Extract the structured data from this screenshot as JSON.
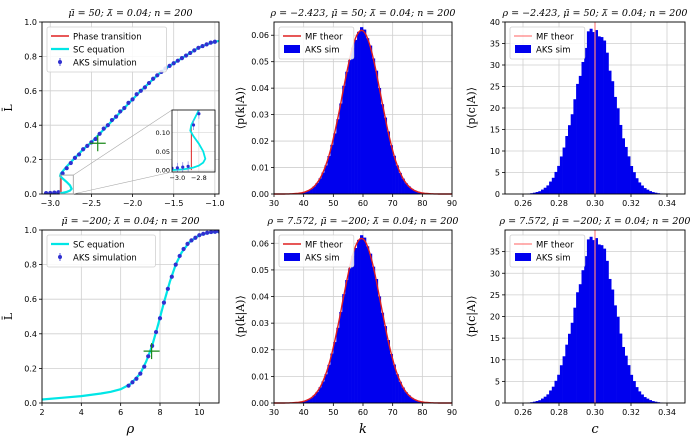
{
  "chart_data": [
    {
      "id": "p1",
      "type": "line",
      "title": "μ̃ = 50;  λ̃ = 0.04;  n = 200",
      "ylabel": "L̄",
      "xlabel": "",
      "xlim": [
        -3.1,
        -0.95
      ],
      "ylim": [
        0,
        1.0
      ],
      "xticks": [
        -3.0,
        -2.5,
        -2.0,
        -1.5,
        -1.0
      ],
      "xtick_labels": [
        "−3.0",
        "−2.5",
        "−2.0",
        "−1.5",
        "−1.0"
      ],
      "yticks": [
        0,
        0.2,
        0.4,
        0.6,
        0.8,
        1.0
      ],
      "ytick_labels": [
        "0.0",
        "0.2",
        "0.4",
        "0.6",
        "0.8",
        "1.0"
      ],
      "grid": true,
      "legend_position": "upper-left",
      "series": [
        {
          "name": "Phase transition",
          "kind": "vline",
          "color": "#e02020",
          "x": -2.87,
          "y_range": [
            0.0,
            0.12
          ]
        },
        {
          "name": "SC equation",
          "kind": "line",
          "color": "#00e6e6",
          "points": [
            [
              -3.05,
              0.0
            ],
            [
              -3.0,
              0.001
            ],
            [
              -2.95,
              0.002
            ],
            [
              -2.9,
              0.004
            ],
            [
              -2.85,
              0.007
            ],
            [
              -2.8,
              0.012
            ],
            [
              -2.76,
              0.02
            ],
            [
              -2.74,
              0.03
            ],
            [
              -2.76,
              0.05
            ],
            [
              -2.8,
              0.07
            ],
            [
              -2.85,
              0.09
            ],
            [
              -2.88,
              0.105
            ],
            [
              -2.87,
              0.12
            ],
            [
              -2.8,
              0.16
            ],
            [
              -2.7,
              0.21
            ],
            [
              -2.6,
              0.26
            ],
            [
              -2.5,
              0.3
            ],
            [
              -2.4,
              0.35
            ],
            [
              -2.3,
              0.4
            ],
            [
              -2.2,
              0.45
            ],
            [
              -2.1,
              0.5
            ],
            [
              -2.0,
              0.55
            ],
            [
              -1.9,
              0.6
            ],
            [
              -1.8,
              0.645
            ],
            [
              -1.7,
              0.69
            ],
            [
              -1.6,
              0.73
            ],
            [
              -1.5,
              0.76
            ],
            [
              -1.4,
              0.79
            ],
            [
              -1.3,
              0.82
            ],
            [
              -1.2,
              0.85
            ],
            [
              -1.1,
              0.87
            ],
            [
              -1.0,
              0.885
            ],
            [
              -0.95,
              0.89
            ]
          ]
        },
        {
          "name": "AKS simulation",
          "kind": "points",
          "color": "#3030d0",
          "points": [
            [
              -3.05,
              0.005
            ],
            [
              -3.0,
              0.006
            ],
            [
              -2.95,
              0.008
            ],
            [
              -2.9,
              0.01
            ],
            [
              -2.85,
              0.12
            ],
            [
              -2.8,
              0.15
            ],
            [
              -2.75,
              0.18
            ],
            [
              -2.7,
              0.21
            ],
            [
              -2.65,
              0.23
            ],
            [
              -2.6,
              0.26
            ],
            [
              -2.55,
              0.28
            ],
            [
              -2.5,
              0.3
            ],
            [
              -2.45,
              0.32
            ],
            [
              -2.4,
              0.35
            ],
            [
              -2.35,
              0.38
            ],
            [
              -2.3,
              0.4
            ],
            [
              -2.25,
              0.43
            ],
            [
              -2.2,
              0.45
            ],
            [
              -2.15,
              0.48
            ],
            [
              -2.1,
              0.5
            ],
            [
              -2.05,
              0.53
            ],
            [
              -2.0,
              0.55
            ],
            [
              -1.95,
              0.58
            ],
            [
              -1.9,
              0.6
            ],
            [
              -1.85,
              0.62
            ],
            [
              -1.8,
              0.645
            ],
            [
              -1.75,
              0.67
            ],
            [
              -1.7,
              0.69
            ],
            [
              -1.65,
              0.71
            ],
            [
              -1.6,
              0.73
            ],
            [
              -1.55,
              0.745
            ],
            [
              -1.5,
              0.76
            ],
            [
              -1.45,
              0.775
            ],
            [
              -1.4,
              0.79
            ],
            [
              -1.35,
              0.805
            ],
            [
              -1.3,
              0.82
            ],
            [
              -1.25,
              0.835
            ],
            [
              -1.2,
              0.85
            ],
            [
              -1.15,
              0.86
            ],
            [
              -1.1,
              0.87
            ],
            [
              -1.05,
              0.88
            ],
            [
              -1.0,
              0.885
            ]
          ]
        }
      ],
      "marker": {
        "x": -2.423,
        "y": 0.295,
        "color": "#1a8a1a"
      },
      "inset": {
        "xlim": [
          -3.05,
          -2.65
        ],
        "ylim": [
          -0.005,
          0.16
        ],
        "xticks": [
          -3.0,
          -2.8
        ],
        "xtick_labels": [
          "−3.0",
          "−2.8"
        ],
        "yticks": [
          0.0,
          0.05,
          0.1
        ],
        "ytick_labels": [
          "0.00",
          "0.05",
          "0.10"
        ],
        "zoom_box_x": [
          -2.88,
          -2.72
        ],
        "zoom_box_y": [
          -0.02,
          0.11
        ]
      }
    },
    {
      "id": "p2",
      "type": "bar",
      "title": "ρ = −2.423,  μ̃ = 50;  λ̃ = 0.04;  n = 200",
      "ylabel": "⟨p(k|A)⟩",
      "xlabel": "",
      "xlim": [
        30,
        90
      ],
      "ylim": [
        0,
        0.065
      ],
      "xticks": [
        30,
        40,
        50,
        60,
        70,
        80,
        90
      ],
      "yticks": [
        0,
        0.01,
        0.02,
        0.03,
        0.04,
        0.05,
        0.06
      ],
      "ytick_labels": [
        "0.00",
        "0.01",
        "0.02",
        "0.03",
        "0.04",
        "0.05",
        "0.06"
      ],
      "grid": true,
      "legend_position": "upper-left",
      "series": [
        {
          "name": "MF theor",
          "kind": "curve",
          "color": "#e02020",
          "mean": 59.5,
          "sd": 6.45
        },
        {
          "name": "AKS sim",
          "kind": "hist",
          "color": "#0000ee",
          "mean": 59.5,
          "sd": 6.45,
          "bin_start": 30,
          "bin_end": 90,
          "bin_width": 1
        }
      ]
    },
    {
      "id": "p3",
      "type": "bar",
      "title": "ρ = −2.423,  μ̃ = 50;  λ̃ = 0.04;  n = 200",
      "ylabel": "⟨p(c|A)⟩",
      "xlabel": "",
      "xlim": [
        0.25,
        0.35
      ],
      "ylim": [
        0,
        40
      ],
      "xticks": [
        0.26,
        0.28,
        0.3,
        0.32,
        0.34
      ],
      "xtick_labels": [
        "0.26",
        "0.28",
        "0.30",
        "0.32",
        "0.34"
      ],
      "yticks": [
        0,
        5,
        10,
        15,
        20,
        25,
        30,
        35,
        40
      ],
      "grid": true,
      "legend_position": "upper-left",
      "series": [
        {
          "name": "MF theor",
          "kind": "vline",
          "color": "#ff8080",
          "x": 0.3
        },
        {
          "name": "AKS sim",
          "kind": "hist",
          "color": "#0000ee",
          "mean": 0.3,
          "sd": 0.0108,
          "bin_start": 0.255,
          "bin_end": 0.345,
          "bin_width": 0.0015,
          "peak": 38.5
        }
      ]
    },
    {
      "id": "p4",
      "type": "line",
      "title": "μ̃ = −200;  λ̃ = 0.04;  n = 200",
      "ylabel": "L̄",
      "xlabel": "ρ",
      "xlim": [
        2,
        11
      ],
      "ylim": [
        0,
        1.0
      ],
      "xticks": [
        2,
        4,
        6,
        8,
        10
      ],
      "yticks": [
        0,
        0.2,
        0.4,
        0.6,
        0.8,
        1.0
      ],
      "ytick_labels": [
        "0.0",
        "0.2",
        "0.4",
        "0.6",
        "0.8",
        "1.0"
      ],
      "grid": true,
      "legend_position": "upper-left",
      "series": [
        {
          "name": "SC equation",
          "kind": "line",
          "color": "#00e6e6",
          "points": [
            [
              2,
              0.02
            ],
            [
              3,
              0.03
            ],
            [
              4,
              0.04
            ],
            [
              5,
              0.055
            ],
            [
              5.5,
              0.065
            ],
            [
              6,
              0.08
            ],
            [
              6.5,
              0.11
            ],
            [
              7,
              0.17
            ],
            [
              7.3,
              0.24
            ],
            [
              7.6,
              0.33
            ],
            [
              7.9,
              0.45
            ],
            [
              8.2,
              0.58
            ],
            [
              8.5,
              0.7
            ],
            [
              8.8,
              0.8
            ],
            [
              9.1,
              0.87
            ],
            [
              9.5,
              0.93
            ],
            [
              10,
              0.97
            ],
            [
              10.5,
              0.985
            ],
            [
              11,
              0.99
            ]
          ]
        },
        {
          "name": "AKS simulation",
          "kind": "points",
          "color": "#3030d0",
          "points": [
            [
              6.4,
              0.1
            ],
            [
              6.6,
              0.12
            ],
            [
              6.8,
              0.14
            ],
            [
              7.0,
              0.17
            ],
            [
              7.2,
              0.21
            ],
            [
              7.4,
              0.27
            ],
            [
              7.6,
              0.33
            ],
            [
              7.8,
              0.41
            ],
            [
              8.0,
              0.49
            ],
            [
              8.2,
              0.58
            ],
            [
              8.4,
              0.66
            ],
            [
              8.6,
              0.73
            ],
            [
              8.8,
              0.8
            ],
            [
              9.0,
              0.85
            ],
            [
              9.2,
              0.89
            ],
            [
              9.4,
              0.92
            ],
            [
              9.6,
              0.94
            ],
            [
              9.8,
              0.955
            ],
            [
              10.0,
              0.97
            ],
            [
              10.2,
              0.978
            ],
            [
              10.4,
              0.984
            ],
            [
              10.6,
              0.988
            ],
            [
              10.8,
              0.99
            ],
            [
              11.0,
              0.992
            ]
          ]
        }
      ],
      "marker": {
        "x": 7.572,
        "y": 0.3,
        "color": "#1a8a1a"
      }
    },
    {
      "id": "p5",
      "type": "bar",
      "title": "ρ = 7.572,  μ̃ = −200;  λ̃ = 0.04;  n = 200",
      "ylabel": "⟨p(k|A)⟩",
      "xlabel": "k",
      "xlim": [
        30,
        90
      ],
      "ylim": [
        0,
        0.065
      ],
      "xticks": [
        30,
        40,
        50,
        60,
        70,
        80,
        90
      ],
      "yticks": [
        0,
        0.01,
        0.02,
        0.03,
        0.04,
        0.05,
        0.06
      ],
      "ytick_labels": [
        "0.00",
        "0.01",
        "0.02",
        "0.03",
        "0.04",
        "0.05",
        "0.06"
      ],
      "grid": true,
      "legend_position": "upper-left",
      "series": [
        {
          "name": "MF theor",
          "kind": "curve",
          "color": "#e02020",
          "mean": 59.5,
          "sd": 6.45
        },
        {
          "name": "AKS sim",
          "kind": "hist",
          "color": "#0000ee",
          "mean": 59.5,
          "sd": 6.45,
          "bin_start": 30,
          "bin_end": 90,
          "bin_width": 1
        }
      ]
    },
    {
      "id": "p6",
      "type": "bar",
      "title": "ρ = 7.572,  μ̃ = −200;  λ̃ = 0.04;  n = 200",
      "ylabel": "⟨p(c|A)⟩",
      "xlabel": "c",
      "xlim": [
        0.25,
        0.35
      ],
      "ylim": [
        0,
        40
      ],
      "xticks": [
        0.26,
        0.28,
        0.3,
        0.32,
        0.34
      ],
      "xtick_labels": [
        "0.26",
        "0.28",
        "0.30",
        "0.32",
        "0.34"
      ],
      "yticks": [
        0,
        5,
        10,
        15,
        20,
        25,
        30,
        35
      ],
      "grid": true,
      "legend_position": "upper-left",
      "series": [
        {
          "name": "MF theor",
          "kind": "vline",
          "color": "#ff8080",
          "x": 0.3
        },
        {
          "name": "AKS sim",
          "kind": "hist",
          "color": "#0000ee",
          "mean": 0.3,
          "sd": 0.0108,
          "bin_start": 0.255,
          "bin_end": 0.345,
          "bin_width": 0.0015,
          "peak": 38.5
        }
      ]
    }
  ]
}
